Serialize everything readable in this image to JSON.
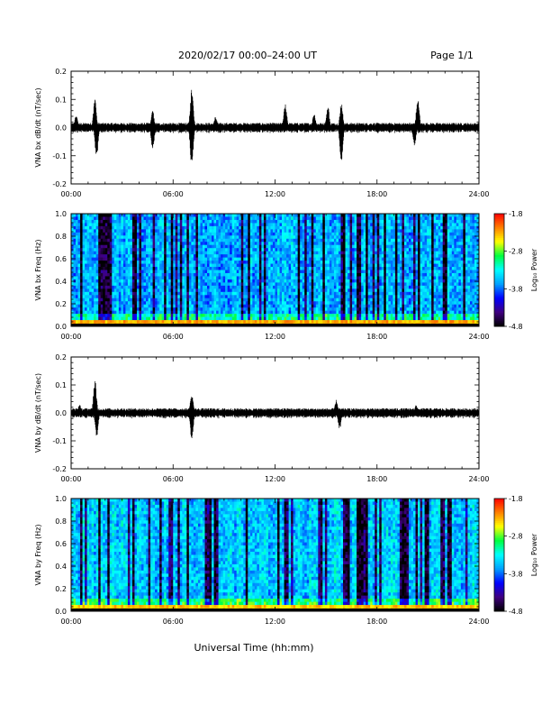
{
  "header": {
    "title": "2020/02/17  00:00–24:00 UT",
    "page": "Page 1/1"
  },
  "footer": {
    "xlabel": "Universal Time (hh:mm)"
  },
  "colors": {
    "trace": "#000000",
    "colorbar_stops": [
      "#000000",
      "#400080",
      "#0000ff",
      "#00a0ff",
      "#00ffff",
      "#00ff40",
      "#ffff00",
      "#ff8000",
      "#ff0000"
    ]
  },
  "chart_data": [
    {
      "id": "bx_wave",
      "type": "line",
      "ylabel": "VNA bx dB/dt (nT/sec)",
      "xlim": [
        "00:00",
        "24:00"
      ],
      "xticks": [
        "00:00",
        "06:00",
        "12:00",
        "18:00",
        "24:00"
      ],
      "ylim": [
        -0.2,
        0.2
      ],
      "yticks": [
        "0.2",
        "0.1",
        "0.0",
        "-0.1",
        "-0.2"
      ],
      "grid": false,
      "baseline_amplitude": 0.012,
      "bursts": [
        {
          "t_hours": 0.3,
          "amplitude": 0.05
        },
        {
          "t_hours": 1.4,
          "amplitude": 0.1
        },
        {
          "t_hours": 1.5,
          "amplitude": -0.11
        },
        {
          "t_hours": 4.8,
          "amplitude": 0.06
        },
        {
          "t_hours": 4.8,
          "amplitude": -0.08
        },
        {
          "t_hours": 7.1,
          "amplitude": 0.15
        },
        {
          "t_hours": 7.1,
          "amplitude": -0.15
        },
        {
          "t_hours": 8.5,
          "amplitude": 0.04
        },
        {
          "t_hours": 12.6,
          "amplitude": 0.09
        },
        {
          "t_hours": 14.3,
          "amplitude": 0.05
        },
        {
          "t_hours": 15.1,
          "amplitude": 0.08
        },
        {
          "t_hours": 15.9,
          "amplitude": 0.09
        },
        {
          "t_hours": 15.9,
          "amplitude": -0.12
        },
        {
          "t_hours": 20.4,
          "amplitude": 0.11
        },
        {
          "t_hours": 20.2,
          "amplitude": -0.07
        }
      ]
    },
    {
      "id": "bx_spec",
      "type": "heatmap",
      "ylabel": "VNA bx Freq (Hz)",
      "xlim": [
        "00:00",
        "24:00"
      ],
      "xticks": [
        "00:00",
        "06:00",
        "12:00",
        "18:00",
        "24:00"
      ],
      "ylim": [
        0.0,
        1.0
      ],
      "yticks": [
        "1.0",
        "0.8",
        "0.6",
        "0.4",
        "0.2",
        "0.0"
      ],
      "colorbar": {
        "label": "Log₁₀ Power",
        "ticks": [
          "-1.8",
          "-2.8",
          "-3.8",
          "-4.8"
        ],
        "range": [
          -4.8,
          -1.8
        ]
      },
      "typical_level": -3.6,
      "low_freq_level": -2.3
    },
    {
      "id": "by_wave",
      "type": "line",
      "ylabel": "VNA by dB/dt (nT/sec)",
      "xlim": [
        "00:00",
        "24:00"
      ],
      "xticks": [
        "00:00",
        "06:00",
        "12:00",
        "18:00",
        "24:00"
      ],
      "ylim": [
        -0.2,
        0.2
      ],
      "yticks": [
        "0.2",
        "0.1",
        "0.0",
        "-0.1",
        "-0.2"
      ],
      "grid": false,
      "baseline_amplitude": 0.012,
      "bursts": [
        {
          "t_hours": 0.5,
          "amplitude": 0.03
        },
        {
          "t_hours": 1.4,
          "amplitude": 0.12
        },
        {
          "t_hours": 1.5,
          "amplitude": -0.09
        },
        {
          "t_hours": 7.1,
          "amplitude": 0.07
        },
        {
          "t_hours": 7.1,
          "amplitude": -0.1
        },
        {
          "t_hours": 15.6,
          "amplitude": 0.05
        },
        {
          "t_hours": 15.8,
          "amplitude": -0.06
        },
        {
          "t_hours": 20.3,
          "amplitude": 0.03
        }
      ]
    },
    {
      "id": "by_spec",
      "type": "heatmap",
      "ylabel": "VNA by Freq (Hz)",
      "xlim": [
        "00:00",
        "24:00"
      ],
      "xticks": [
        "00:00",
        "06:00",
        "12:00",
        "18:00",
        "24:00"
      ],
      "ylim": [
        0.0,
        1.0
      ],
      "yticks": [
        "1.0",
        "0.8",
        "0.6",
        "0.4",
        "0.2",
        "0.0"
      ],
      "colorbar": {
        "label": "Log₁₀ Power",
        "ticks": [
          "-1.8",
          "-2.8",
          "-3.8",
          "-4.8"
        ],
        "range": [
          -4.8,
          -1.8
        ]
      },
      "typical_level": -3.5,
      "low_freq_level": -2.4
    }
  ]
}
